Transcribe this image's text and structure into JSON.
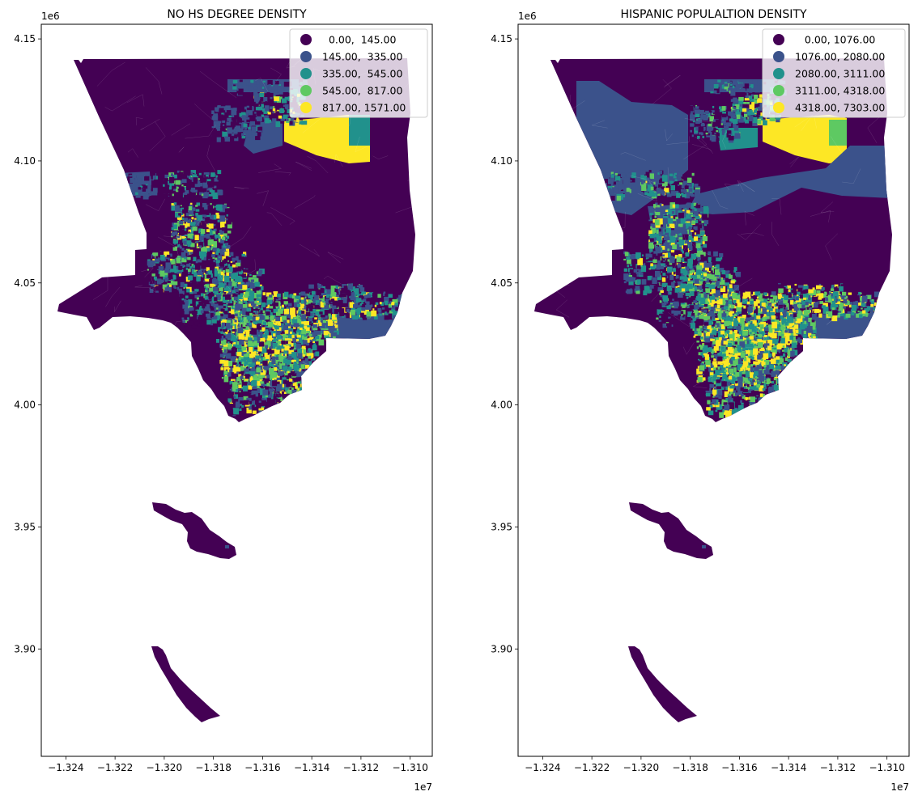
{
  "figure": {
    "panels": [
      {
        "title": "NO HS DEGREE DENSITY",
        "x_offset_label": "1e7",
        "y_offset_label": "1e6",
        "legend": [
          {
            "label": "  0.00,  145.00",
            "color": "#440154"
          },
          {
            "label": "145.00,  335.00",
            "color": "#3b528b"
          },
          {
            "label": "335.00,  545.00",
            "color": "#21918c"
          },
          {
            "label": "545.00,  817.00",
            "color": "#5ec962"
          },
          {
            "label": "817.00, 1571.00",
            "color": "#fde725"
          }
        ]
      },
      {
        "title": "HISPANIC POPULALTION DENSITY",
        "x_offset_label": "1e7",
        "y_offset_label": "1e6",
        "legend": [
          {
            "label": "   0.00, 1076.00",
            "color": "#440154"
          },
          {
            "label": "1076.00, 2080.00",
            "color": "#3b528b"
          },
          {
            "label": "2080.00, 3111.00",
            "color": "#21918c"
          },
          {
            "label": "3111.00, 4318.00",
            "color": "#5ec962"
          },
          {
            "label": "4318.00, 7303.00",
            "color": "#fde725"
          }
        ]
      }
    ]
  },
  "chart_data": [
    {
      "type": "choropleth",
      "title": "NO HS DEGREE DENSITY",
      "x_ticks": [
        -1.324,
        -1.322,
        -1.32,
        -1.318,
        -1.316,
        -1.314,
        -1.312,
        -1.31
      ],
      "x_tick_labels": [
        "−1.324",
        "−1.322",
        "−1.320",
        "−1.318",
        "−1.316",
        "−1.314",
        "−1.312",
        "−1.310"
      ],
      "y_ticks": [
        3.9,
        3.95,
        4.0,
        4.05,
        4.1,
        4.15
      ],
      "y_tick_labels": [
        "3.90",
        "3.95",
        "4.00",
        "4.05",
        "4.10",
        "4.15"
      ],
      "x_scale_label": "1e7",
      "y_scale_label": "1e6",
      "xlim": [
        -1.325,
        -1.3091
      ],
      "ylim": [
        3.856,
        4.156
      ],
      "classes": [
        {
          "range": [
            0.0,
            145.0
          ],
          "color": "#440154"
        },
        {
          "range": [
            145.0,
            335.0
          ],
          "color": "#3b528b"
        },
        {
          "range": [
            335.0,
            545.0
          ],
          "color": "#21918c"
        },
        {
          "range": [
            545.0,
            817.0
          ],
          "color": "#5ec962"
        },
        {
          "range": [
            817.0,
            1571.0
          ],
          "color": "#fde725"
        }
      ],
      "legend_position": "top-right"
    },
    {
      "type": "choropleth",
      "title": "HISPANIC POPULALTION DENSITY",
      "x_ticks": [
        -1.324,
        -1.322,
        -1.32,
        -1.318,
        -1.316,
        -1.314,
        -1.312,
        -1.31
      ],
      "x_tick_labels": [
        "−1.324",
        "−1.322",
        "−1.320",
        "−1.318",
        "−1.316",
        "−1.314",
        "−1.312",
        "−1.310"
      ],
      "y_ticks": [
        3.9,
        3.95,
        4.0,
        4.05,
        4.1,
        4.15
      ],
      "y_tick_labels": [
        "3.90",
        "3.95",
        "4.00",
        "4.05",
        "4.10",
        "4.15"
      ],
      "x_scale_label": "1e7",
      "y_scale_label": "1e6",
      "xlim": [
        -1.325,
        -1.3091
      ],
      "ylim": [
        3.856,
        4.156
      ],
      "classes": [
        {
          "range": [
            0.0,
            1076.0
          ],
          "color": "#440154"
        },
        {
          "range": [
            1076.0,
            2080.0
          ],
          "color": "#3b528b"
        },
        {
          "range": [
            2080.0,
            3111.0
          ],
          "color": "#21918c"
        },
        {
          "range": [
            3111.0,
            4318.0
          ],
          "color": "#5ec962"
        },
        {
          "range": [
            4318.0,
            7303.0
          ],
          "color": "#fde725"
        }
      ],
      "legend_position": "top-right"
    }
  ]
}
